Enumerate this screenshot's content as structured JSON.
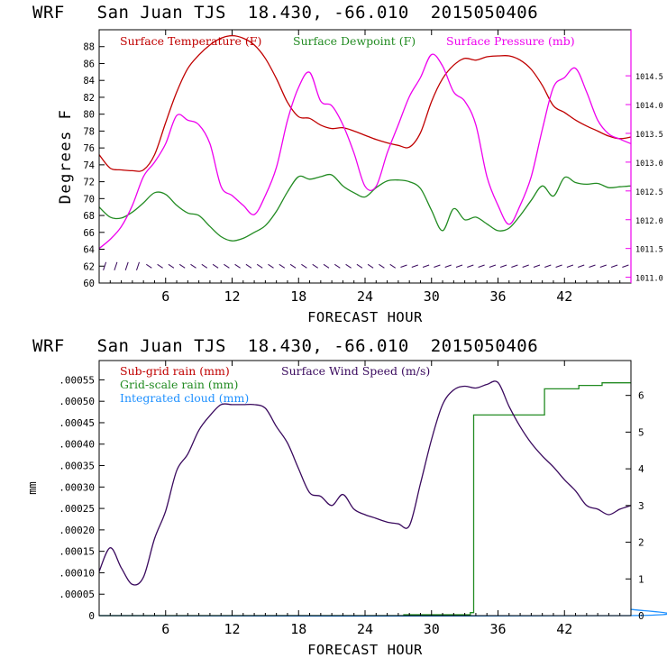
{
  "colors": {
    "temperature": "#c00000",
    "dewpoint": "#228b22",
    "pressure": "#ee00ee",
    "subgrid_rain": "#c00000",
    "grid_rain": "#228b22",
    "cloud": "#1e90ff",
    "wind": "#3a0a5e",
    "barbs": "#3a0a5e",
    "axes": "#000000"
  },
  "chart_data": [
    {
      "type": "line",
      "title": "WRF   San Juan TJS  18.430, -66.010  2015050406",
      "xlabel": "FORECAST HOUR",
      "ylabel": "Degrees F",
      "xlim": [
        0,
        48
      ],
      "ylim": [
        60,
        90
      ],
      "y2lim": [
        1010.9,
        1015.3
      ],
      "x_ticks": [
        6,
        12,
        18,
        24,
        30,
        36,
        42
      ],
      "x_tick_labels": [
        "6",
        "12",
        "18",
        "24",
        "30",
        "36",
        "42"
      ],
      "y_ticks": [
        60,
        62,
        64,
        66,
        68,
        70,
        72,
        74,
        76,
        78,
        80,
        82,
        84,
        86,
        88
      ],
      "y_tick_labels": [
        "60",
        "62",
        "64",
        "66",
        "68",
        "70",
        "72",
        "74",
        "76",
        "78",
        "80",
        "82",
        "84",
        "86",
        "88"
      ],
      "y2_ticks": [
        1011.0,
        1011.5,
        1012.0,
        1012.5,
        1013.0,
        1013.5,
        1014.0,
        1014.5
      ],
      "y2_tick_labels": [
        "1011.0",
        "1011.5",
        "1012.0",
        "1012.5",
        "1013.0",
        "1013.5",
        "1014.0",
        "1014.5"
      ],
      "legend": [
        "Surface Temperature (F)",
        "Surface Dewpoint (F)",
        "Surface Pressure (mb)"
      ],
      "series": [
        {
          "name": "Surface Temperature (F)",
          "axis": "left",
          "x": [
            0,
            1,
            2,
            3,
            4,
            5,
            6,
            7,
            8,
            9,
            10,
            11,
            12,
            13,
            14,
            15,
            16,
            17,
            18,
            19,
            20,
            21,
            22,
            23,
            24,
            25,
            26,
            27,
            28,
            29,
            30,
            31,
            32,
            33,
            34,
            35,
            36,
            37,
            38,
            39,
            40,
            41,
            42,
            43,
            44,
            45,
            46,
            47,
            48
          ],
          "values": [
            75.2,
            73.6,
            73.4,
            73.3,
            73.4,
            75.2,
            79.0,
            82.6,
            85.4,
            87.0,
            88.2,
            89.0,
            89.3,
            89.0,
            88.2,
            86.6,
            84.2,
            81.4,
            79.7,
            79.5,
            78.7,
            78.3,
            78.4,
            78.0,
            77.5,
            77.0,
            76.6,
            76.3,
            76.1,
            77.8,
            81.5,
            84.2,
            85.8,
            86.6,
            86.4,
            86.8,
            86.9,
            86.9,
            86.4,
            85.3,
            83.4,
            81.0,
            80.2,
            79.3,
            78.6,
            78.0,
            77.4,
            77.1,
            77.3
          ]
        },
        {
          "name": "Surface Dewpoint (F)",
          "axis": "left",
          "x": [
            0,
            1,
            2,
            3,
            4,
            5,
            6,
            7,
            8,
            9,
            10,
            11,
            12,
            13,
            14,
            15,
            16,
            17,
            18,
            19,
            20,
            21,
            22,
            23,
            24,
            25,
            26,
            27,
            28,
            29,
            30,
            31,
            32,
            33,
            34,
            35,
            36,
            37,
            38,
            39,
            40,
            41,
            42,
            43,
            44,
            45,
            46,
            47,
            48
          ],
          "values": [
            69.0,
            67.8,
            67.7,
            68.4,
            69.5,
            70.7,
            70.5,
            69.2,
            68.3,
            68.0,
            66.7,
            65.5,
            65.0,
            65.3,
            66.0,
            66.8,
            68.5,
            70.8,
            72.6,
            72.3,
            72.6,
            72.8,
            71.5,
            70.7,
            70.2,
            71.3,
            72.1,
            72.2,
            72.0,
            71.2,
            68.6,
            66.2,
            68.8,
            67.5,
            67.8,
            67.0,
            66.2,
            66.5,
            68.0,
            69.8,
            71.5,
            70.3,
            72.5,
            71.9,
            71.7,
            71.8,
            71.3,
            71.4,
            71.5
          ]
        },
        {
          "name": "Surface Pressure (mb)",
          "axis": "right",
          "x": [
            0,
            1,
            2,
            3,
            4,
            5,
            6,
            7,
            8,
            9,
            10,
            11,
            12,
            13,
            14,
            15,
            16,
            17,
            18,
            19,
            20,
            21,
            22,
            23,
            24,
            25,
            26,
            27,
            28,
            29,
            30,
            31,
            32,
            33,
            34,
            35,
            36,
            37,
            38,
            39,
            40,
            41,
            42,
            43,
            44,
            45,
            46,
            47,
            48
          ],
          "values": [
            1011.5,
            1011.66,
            1011.88,
            1012.25,
            1012.75,
            1013.0,
            1013.32,
            1013.81,
            1013.73,
            1013.65,
            1013.32,
            1012.58,
            1012.42,
            1012.25,
            1012.09,
            1012.42,
            1012.91,
            1013.73,
            1014.3,
            1014.56,
            1014.06,
            1013.98,
            1013.65,
            1013.16,
            1012.58,
            1012.58,
            1013.16,
            1013.65,
            1014.14,
            1014.47,
            1014.87,
            1014.67,
            1014.22,
            1014.06,
            1013.65,
            1012.75,
            1012.25,
            1011.92,
            1012.25,
            1012.75,
            1013.57,
            1014.3,
            1014.47,
            1014.63,
            1014.22,
            1013.73,
            1013.49,
            1013.4,
            1013.32
          ]
        }
      ],
      "wind_barbs_row_value": 62
    },
    {
      "type": "line",
      "title": "WRF   San Juan TJS  18.430, -66.010  2015050406",
      "xlabel": "FORECAST HOUR",
      "ylabel": "mm",
      "xlim": [
        0,
        48
      ],
      "ylim": [
        0,
        0.000595
      ],
      "y2lim": [
        0,
        6.95
      ],
      "x_ticks": [
        6,
        12,
        18,
        24,
        30,
        36,
        42
      ],
      "x_tick_labels": [
        "6",
        "12",
        "18",
        "24",
        "30",
        "36",
        "42"
      ],
      "y_ticks": [
        0,
        5e-05,
        0.0001,
        0.00015,
        0.0002,
        0.00025,
        0.0003,
        0.00035,
        0.0004,
        0.00045,
        0.0005,
        0.00055
      ],
      "y_tick_labels": [
        "0",
        ".00005",
        ".00010",
        ".00015",
        ".00020",
        ".00025",
        ".00030",
        ".00035",
        ".00040",
        ".00045",
        ".00050",
        ".00055"
      ],
      "y2_ticks": [
        0,
        1,
        2,
        3,
        4,
        5,
        6
      ],
      "y2_tick_labels": [
        "0",
        "1",
        "2",
        "3",
        "4",
        "5",
        "6"
      ],
      "legend": [
        "Sub-grid rain (mm)",
        "Grid-scale rain (mm)",
        "Integrated cloud (mm)",
        "Surface Wind Speed (m/s)"
      ],
      "series": [
        {
          "name": "Grid-scale rain (mm)",
          "axis": "left",
          "step": true,
          "x": [
            0,
            27.5,
            33.5,
            33.8,
            39.8,
            40.2,
            43.3,
            45.4,
            48
          ],
          "values": [
            0,
            2e-06,
            7e-06,
            0.000468,
            0.000468,
            0.000529,
            0.000537,
            0.000543,
            0.000543
          ]
        },
        {
          "name": "Integrated cloud (mm)",
          "axis": "left",
          "x": [
            0,
            47.8,
            48
          ],
          "values": [
            0,
            0,
            1.5e-05
          ]
        },
        {
          "name": "Surface Wind Speed (m/s)",
          "axis": "right",
          "x": [
            0,
            1,
            2,
            3,
            4,
            5,
            6,
            7,
            8,
            9,
            10,
            11,
            12,
            13,
            14,
            15,
            16,
            17,
            18,
            19,
            20,
            21,
            22,
            23,
            24,
            25,
            26,
            27,
            28,
            29,
            30,
            31,
            32,
            33,
            34,
            35,
            36,
            37,
            38,
            39,
            40,
            41,
            42,
            43,
            44,
            45,
            46,
            47,
            48
          ],
          "values": [
            1.2,
            1.85,
            1.3,
            0.85,
            1.05,
            2.1,
            2.85,
            3.95,
            4.4,
            5.05,
            5.45,
            5.75,
            5.75,
            5.75,
            5.75,
            5.65,
            5.15,
            4.7,
            4.0,
            3.35,
            3.25,
            3.0,
            3.3,
            2.9,
            2.75,
            2.65,
            2.55,
            2.5,
            2.45,
            3.6,
            4.8,
            5.75,
            6.15,
            6.25,
            6.2,
            6.3,
            6.35,
            5.7,
            5.15,
            4.7,
            4.35,
            4.05,
            3.7,
            3.4,
            3.0,
            2.9,
            2.75,
            2.9,
            3.0
          ]
        }
      ]
    }
  ]
}
